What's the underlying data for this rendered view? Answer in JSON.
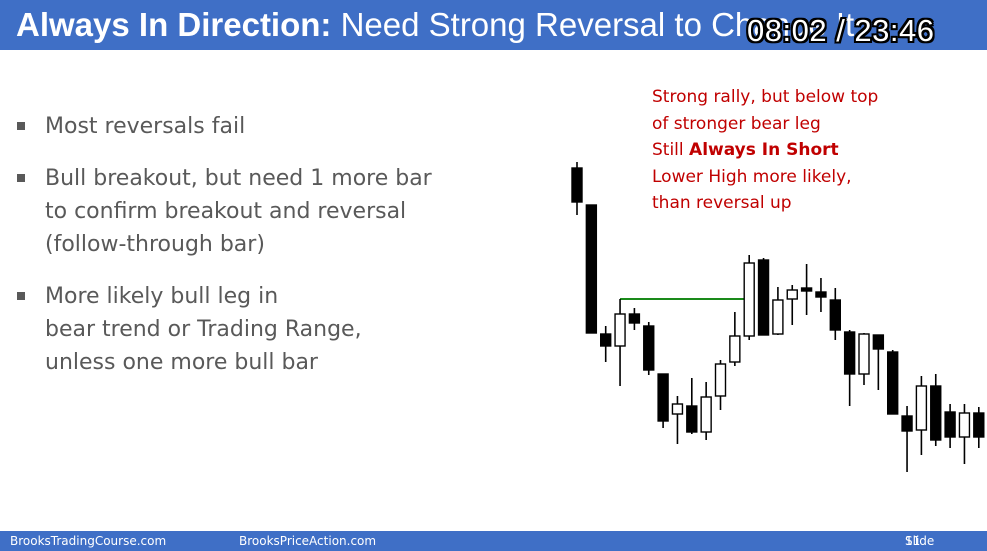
{
  "slide": {
    "title_bold": "Always In Direction:",
    "title_rest": " Need Strong Reversal to Change It",
    "timer": "08:02 / 23:46"
  },
  "bullets": [
    {
      "lines": [
        "Most reversals fail"
      ]
    },
    {
      "lines": [
        "Bull breakout, but need 1 more bar",
        "to confirm breakout and reversal",
        "(follow-through bar)"
      ]
    },
    {
      "lines": [
        "More likely bull leg in",
        "bear trend or Trading Range,",
        "unless one more bull bar"
      ]
    }
  ],
  "annotation": {
    "line1": "Strong rally, but below top",
    "line2": "of stronger bear leg",
    "line3_prefix": "Still ",
    "line3_bold": "Always In Short",
    "line4": "Lower High more likely,",
    "line5": "than reversal up",
    "color": "#c00000"
  },
  "footer": {
    "left": "BrooksTradingCourse.com",
    "center": "BrooksPriceAction.com",
    "slide_label": "Slide",
    "slide_number": "11"
  },
  "colors": {
    "bar": "#3f6fc6",
    "reference_line": "#1a8a1a"
  },
  "chart_data": {
    "type": "candlestick",
    "grid": false,
    "reference_line": {
      "level": 299,
      "from_bar": 3,
      "to_bar": 12
    },
    "bars": [
      {
        "o": 168,
        "c": 202,
        "h": 162,
        "l": 215
      },
      {
        "o": 205,
        "c": 333,
        "h": 205,
        "l": 333
      },
      {
        "o": 334,
        "c": 346,
        "h": 326,
        "l": 362
      },
      {
        "o": 346,
        "c": 314,
        "h": 299,
        "l": 386
      },
      {
        "o": 314,
        "c": 323,
        "h": 308,
        "l": 330
      },
      {
        "o": 326,
        "c": 370,
        "h": 322,
        "l": 375
      },
      {
        "o": 374,
        "c": 421,
        "h": 374,
        "l": 428
      },
      {
        "o": 414,
        "c": 404,
        "h": 396,
        "l": 444
      },
      {
        "o": 406,
        "c": 432,
        "h": 378,
        "l": 434
      },
      {
        "o": 432,
        "c": 397,
        "h": 382,
        "l": 440
      },
      {
        "o": 396,
        "c": 364,
        "h": 360,
        "l": 410
      },
      {
        "o": 362,
        "c": 336,
        "h": 312,
        "l": 366
      },
      {
        "o": 336,
        "c": 263,
        "h": 255,
        "l": 340
      },
      {
        "o": 260,
        "c": 335,
        "h": 258,
        "l": 335
      },
      {
        "o": 334,
        "c": 300,
        "h": 287,
        "l": 335
      },
      {
        "o": 299,
        "c": 290,
        "h": 285,
        "l": 325
      },
      {
        "o": 288,
        "c": 288,
        "h": 264,
        "l": 315
      },
      {
        "o": 292,
        "c": 297,
        "h": 278,
        "l": 312
      },
      {
        "o": 300,
        "c": 330,
        "h": 288,
        "l": 340
      },
      {
        "o": 332,
        "c": 374,
        "h": 330,
        "l": 406
      },
      {
        "o": 374,
        "c": 334,
        "h": 333,
        "l": 385
      },
      {
        "o": 335,
        "c": 349,
        "h": 335,
        "l": 390
      },
      {
        "o": 352,
        "c": 414,
        "h": 350,
        "l": 414
      },
      {
        "o": 416,
        "c": 431,
        "h": 406,
        "l": 472
      },
      {
        "o": 430,
        "c": 386,
        "h": 376,
        "l": 455
      },
      {
        "o": 386,
        "c": 440,
        "h": 374,
        "l": 446
      },
      {
        "o": 412,
        "c": 437,
        "h": 404,
        "l": 448
      },
      {
        "o": 437,
        "c": 413,
        "h": 404,
        "l": 464
      },
      {
        "o": 413,
        "c": 437,
        "h": 407,
        "l": 448
      }
    ]
  }
}
